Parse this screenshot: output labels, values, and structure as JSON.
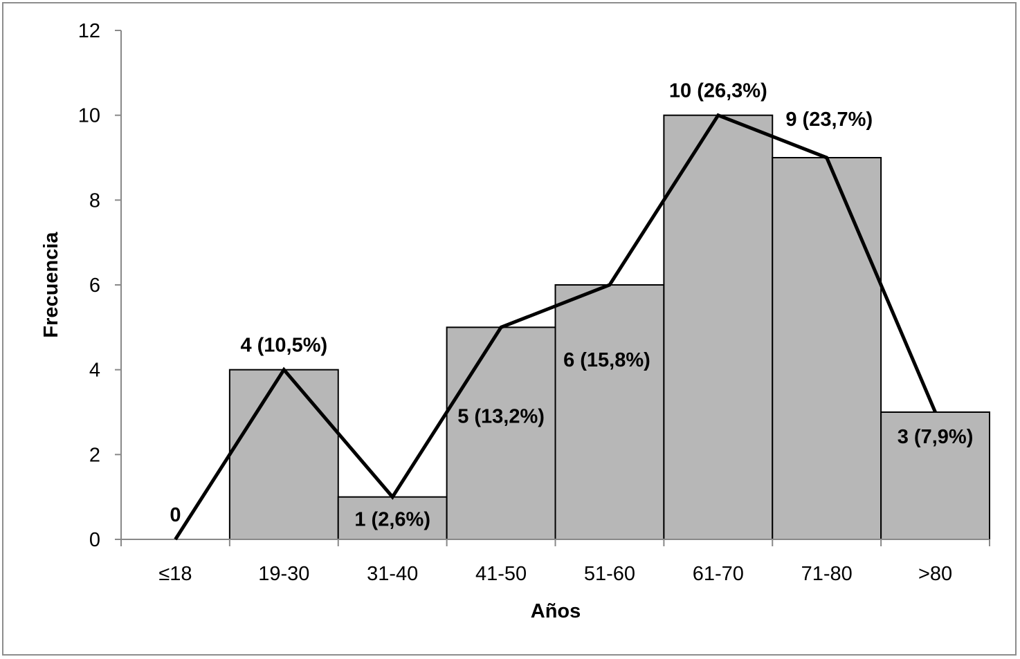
{
  "chart_data": {
    "type": "bar",
    "categories": [
      "≤18",
      "19-30",
      "31-40",
      "41-50",
      "51-60",
      "61-70",
      "71-80",
      ">80"
    ],
    "values": [
      0,
      4,
      1,
      5,
      6,
      10,
      9,
      3
    ],
    "data_labels": [
      "0",
      "4 (10,5%)",
      "1 (2,6%)",
      "5 (13,2%)",
      "6 (15,8%)",
      "10 (26,3%)",
      "9 (23,7%)",
      "3 (7,9%)"
    ],
    "overlay_line": true,
    "title": "",
    "xlabel": "Años",
    "ylabel": "Frecuencia",
    "ylim": [
      0,
      12
    ],
    "yticks": [
      "0",
      "2",
      "4",
      "6",
      "8",
      "10",
      "12"
    ],
    "grid": false,
    "legend": "none",
    "colors": {
      "bar_fill": "#b7b7b7",
      "bar_stroke": "#000000",
      "line": "#000000",
      "axis": "#888888",
      "frame": "#8c8c8c"
    }
  }
}
